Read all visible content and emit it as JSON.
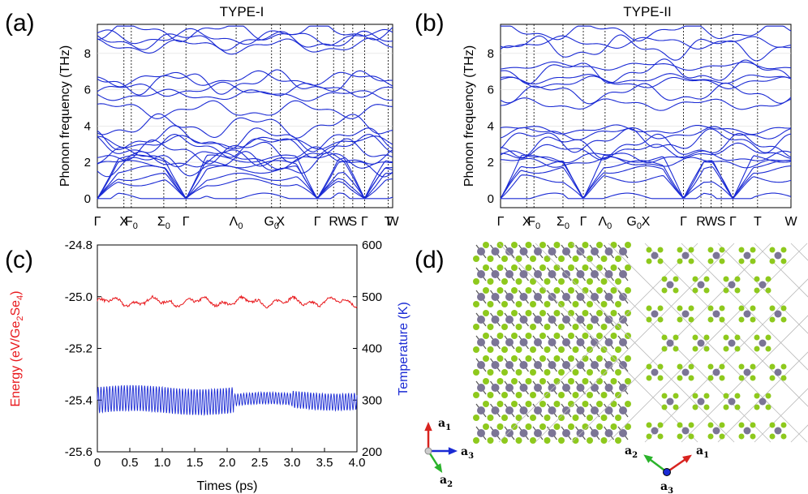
{
  "panels": {
    "a": "(a)",
    "b": "(b)",
    "c": "(c)",
    "d": "(d)"
  },
  "colors": {
    "band": "#1a2ad4",
    "energy": "#e8181c",
    "temperature": "#1a2ad4",
    "ge_atom": "#7b7596",
    "se_atom": "#8ec91d"
  },
  "chart_data": [
    {
      "type": "line",
      "title": "TYPE-I",
      "ylabel": "Phonon frequency (THz)",
      "ylim": [
        -0.5,
        9.6
      ],
      "yticks": [
        0,
        2,
        4,
        6,
        8
      ],
      "kpoints": [
        "Γ",
        "X",
        "F0",
        "Σ0",
        "Γ",
        "Λ0",
        "G0",
        "X",
        "Γ",
        "R",
        "W",
        "S",
        "Γ",
        "T",
        "W"
      ],
      "kpoint_positions": [
        0,
        0.09,
        0.115,
        0.225,
        0.3,
        0.47,
        0.59,
        0.62,
        0.745,
        0.8,
        0.835,
        0.865,
        0.905,
        0.985,
        1.0
      ],
      "approx_band_levels_THz": [
        0,
        0.3,
        0.6,
        1.0,
        1.3,
        1.6,
        1.9,
        2.1,
        2.3,
        2.6,
        2.9,
        3.1,
        3.3,
        4.0,
        4.9,
        5.7,
        6.0,
        6.4,
        6.6,
        8.4,
        8.7,
        8.9,
        9.2
      ]
    },
    {
      "type": "line",
      "title": "TYPE-II",
      "ylabel": "Phonon frequency (THz)",
      "ylim": [
        -0.5,
        9.6
      ],
      "yticks": [
        0,
        2,
        4,
        6,
        8
      ],
      "kpoints": [
        "Γ",
        "X",
        "F0",
        "Σ0",
        "Γ",
        "Λ0",
        "G0",
        "X",
        "Γ",
        "R",
        "W",
        "S",
        "Γ",
        "T",
        "W"
      ],
      "kpoint_positions": [
        0,
        0.09,
        0.115,
        0.215,
        0.285,
        0.36,
        0.46,
        0.5,
        0.63,
        0.69,
        0.725,
        0.76,
        0.8,
        0.885,
        1.0
      ],
      "approx_band_levels_THz": [
        0,
        0.5,
        1.0,
        1.3,
        1.6,
        2.0,
        2.3,
        2.6,
        2.9,
        3.2,
        3.6,
        3.8,
        5.2,
        5.8,
        6.4,
        6.6,
        7.0,
        7.3,
        8.3,
        8.6,
        9.2
      ]
    },
    {
      "type": "line",
      "xlabel": "Times (ps)",
      "ylabel": "Energy (eV/Ge2Se4)",
      "ylabel_parts": [
        "Energy (eV/Ge",
        "2",
        "Se",
        "4",
        ")"
      ],
      "y2label": "Temperature (K)",
      "xlim": [
        0,
        4.0
      ],
      "ylim": [
        -25.6,
        -24.8
      ],
      "y2lim": [
        200,
        600
      ],
      "xticks": [
        "0",
        "0.5",
        "1.0",
        "1.5",
        "2.0",
        "2.5",
        "3.0",
        "3.5",
        "4.0"
      ],
      "yticks": [
        "-24.8",
        "-25.0",
        "-25.2",
        "-25.4",
        "-25.6"
      ],
      "y2ticks": [
        "600",
        "500",
        "400",
        "300",
        "200"
      ],
      "series": [
        {
          "name": "Energy",
          "axis": "left",
          "mean": -25.02,
          "amplitude": 0.03
        },
        {
          "name": "Temperature",
          "axis": "right",
          "mean": 300,
          "amplitude": 25
        }
      ]
    }
  ],
  "crystal": {
    "left_axes": [
      "a1",
      "a3",
      "a2"
    ],
    "right_axes": [
      "a2",
      "a1",
      "a3"
    ]
  }
}
